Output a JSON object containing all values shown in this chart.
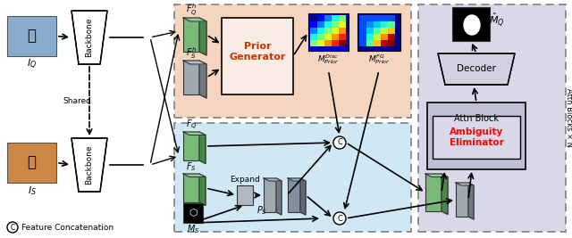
{
  "fig_width": 6.4,
  "fig_height": 2.67,
  "dpi": 100,
  "bg_color": "#ffffff",
  "orange_box_color": "#f5d5c0",
  "blue_box_color": "#d0e8f5",
  "gray_box_color": "#d8d8e8",
  "prior_gen_color": "#f5e0d0",
  "attn_box_color": "#c8c8d8",
  "decoder_color": "#d0d0e0",
  "green_feat_color": "#7ab87a",
  "gray_feat_color": "#a0a8b0",
  "dark_feat_color": "#606870",
  "red_text_color": "#ff0000",
  "title_text": "Prior Generator",
  "ambiguity_text": "Ambiguity\nEliminator",
  "attn_block_text": "Attn Block",
  "decoder_text": "Decoder",
  "backbone_text": "Backbone",
  "shared_text": "Shared",
  "expand_text": "Expand",
  "concat_text": "C",
  "feat_concat_text": "Feature Concatenation"
}
